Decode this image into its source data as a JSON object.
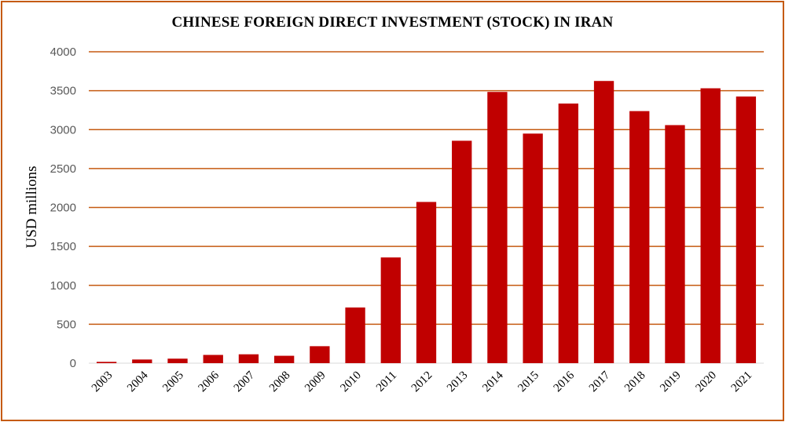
{
  "chart_data": {
    "type": "bar",
    "title": "CHINESE FOREIGN DIRECT INVESTMENT (STOCK) IN IRAN",
    "xlabel": "",
    "ylabel": "USD millions",
    "ylim": [
      0,
      4000
    ],
    "yticks": [
      0,
      500,
      1000,
      1500,
      2000,
      2500,
      3000,
      3500,
      4000
    ],
    "grid": true,
    "legend": "none",
    "colors": {
      "bar": "#c00000",
      "grid": "#c55a11",
      "frame": "#c55a11"
    },
    "categories": [
      "2003",
      "2004",
      "2005",
      "2006",
      "2007",
      "2008",
      "2009",
      "2010",
      "2011",
      "2012",
      "2013",
      "2014",
      "2015",
      "2016",
      "2017",
      "2018",
      "2019",
      "2020",
      "2021"
    ],
    "values": [
      17,
      47,
      58,
      106,
      114,
      95,
      218,
      715,
      1358,
      2071,
      2857,
      3484,
      2949,
      3335,
      3625,
      3238,
      3058,
      3531,
      3425
    ]
  }
}
